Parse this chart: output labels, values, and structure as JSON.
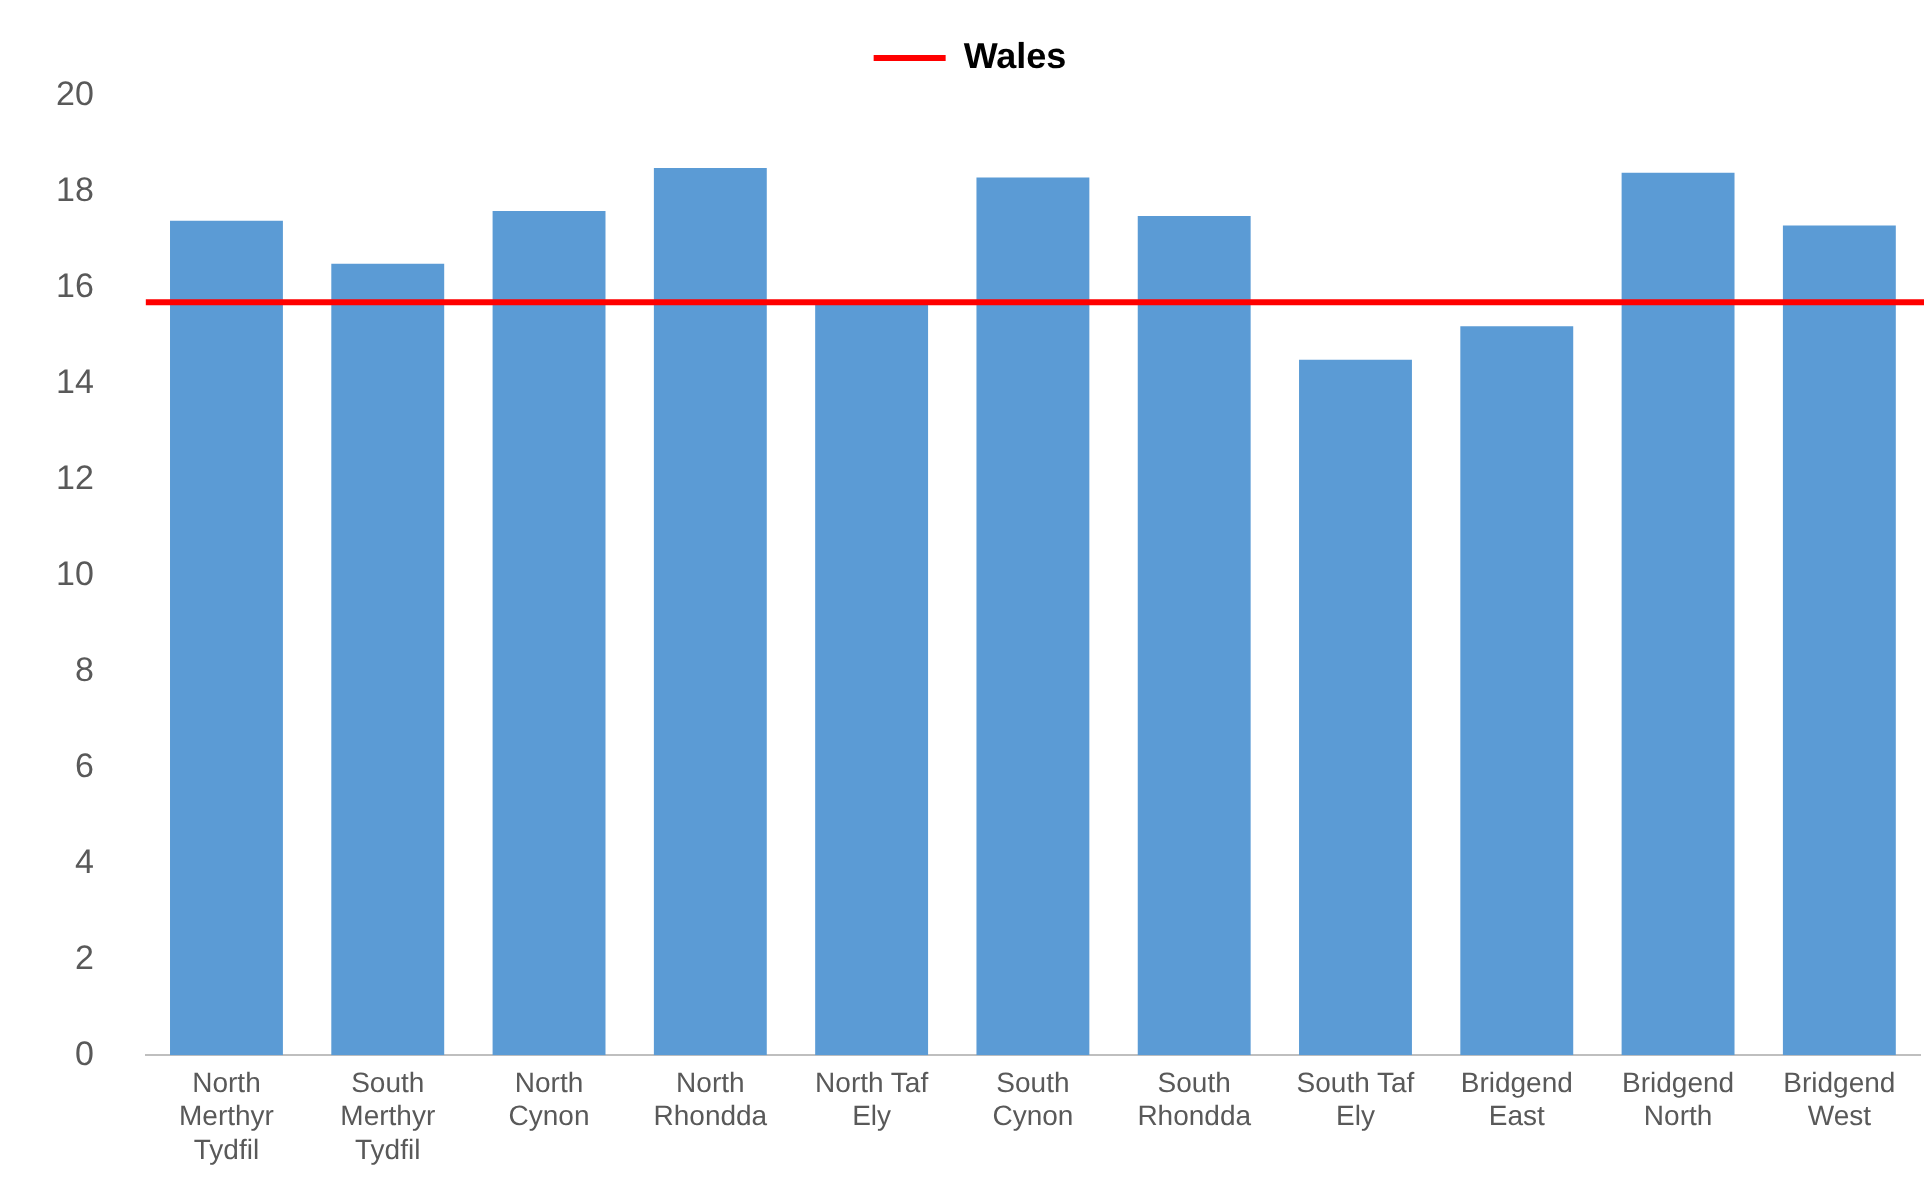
{
  "chart_data": {
    "type": "bar",
    "categories": [
      "North Merthyr Tydfil",
      "South Merthyr Tydfil",
      "North Cynon",
      "North Rhondda",
      "North Taf Ely",
      "South Cynon",
      "South Rhondda",
      "South Taf Ely",
      "Bridgend East",
      "Bridgend North",
      "Bridgend West"
    ],
    "values": [
      17.4,
      16.5,
      17.6,
      18.5,
      15.7,
      18.3,
      17.5,
      14.5,
      15.2,
      18.4,
      17.3
    ],
    "color": "#5b9bd5",
    "ylim": [
      0,
      20
    ],
    "yticks": [
      0,
      2,
      4,
      6,
      8,
      10,
      12,
      14,
      16,
      18,
      20
    ],
    "grid": false,
    "legend": "top",
    "ref_lines": [
      {
        "axis": "y",
        "value": 15.7,
        "label": "Wales",
        "color": "#ff0000"
      }
    ]
  }
}
